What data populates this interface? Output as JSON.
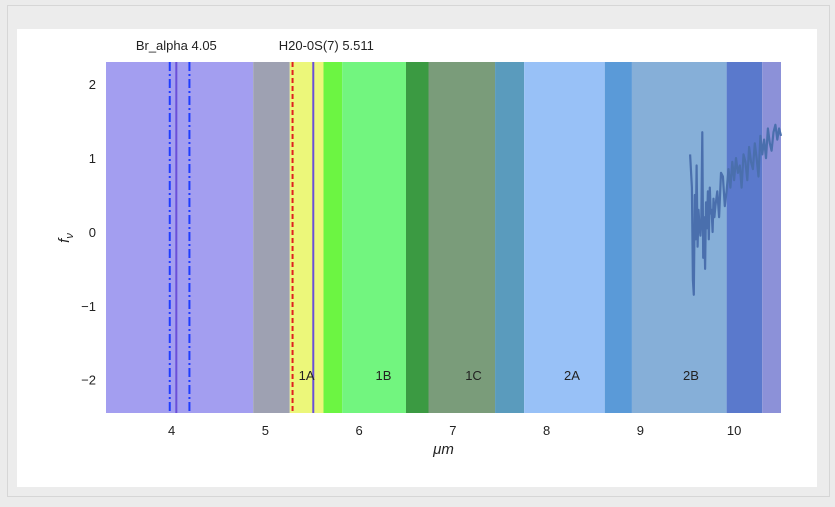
{
  "chart_data": {
    "type": "line",
    "xlabel": "μm",
    "ylabel": "f",
    "ylabel_subscript": "ν",
    "xlim": [
      3.3,
      10.5
    ],
    "ylim": [
      -2.45,
      2.3
    ],
    "xticks": [
      4,
      5,
      6,
      7,
      8,
      9,
      10
    ],
    "yticks": [
      2,
      1,
      0,
      -1,
      -2
    ],
    "ytick_labels": [
      "2",
      "1",
      "0",
      "−1",
      "−2"
    ],
    "grid": false,
    "bands": [
      {
        "x0": 3.3,
        "x1": 4.87,
        "color": "#a39ef0"
      },
      {
        "x0": 4.87,
        "x1": 5.26,
        "color": "#9ea1b2"
      },
      {
        "x0": 5.26,
        "x1": 5.62,
        "color": "#ecf77a"
      },
      {
        "x0": 5.62,
        "x1": 5.82,
        "color": "#6cf542"
      },
      {
        "x0": 5.82,
        "x1": 6.5,
        "color": "#72f57f"
      },
      {
        "x0": 6.5,
        "x1": 6.74,
        "color": "#3b9a42"
      },
      {
        "x0": 6.74,
        "x1": 7.45,
        "color": "#7a9c7a"
      },
      {
        "x0": 7.45,
        "x1": 7.76,
        "color": "#5a9bbd"
      },
      {
        "x0": 7.76,
        "x1": 8.62,
        "color": "#98c1f7"
      },
      {
        "x0": 8.62,
        "x1": 8.91,
        "color": "#5a9ad8"
      },
      {
        "x0": 8.91,
        "x1": 9.92,
        "color": "#86afd8"
      },
      {
        "x0": 9.92,
        "x1": 10.3,
        "color": "#5a79cc"
      },
      {
        "x0": 10.3,
        "x1": 10.5,
        "color": "#8c91d8"
      }
    ],
    "region_labels": [
      {
        "text": "1A",
        "x": 5.44,
        "y": -1.95
      },
      {
        "text": "1B",
        "x": 6.26,
        "y": -1.95
      },
      {
        "text": "1C",
        "x": 7.22,
        "y": -1.95
      },
      {
        "text": "2A",
        "x": 8.27,
        "y": -1.95
      },
      {
        "text": "2B",
        "x": 9.54,
        "y": -1.95
      }
    ],
    "vertical_lines": [
      {
        "x": 3.98,
        "color": "#1f3dff",
        "style": "dashdot"
      },
      {
        "x": 4.05,
        "color": "#6a4fd8",
        "style": "solid"
      },
      {
        "x": 4.19,
        "color": "#1f3dff",
        "style": "dashdot"
      },
      {
        "x": 5.29,
        "color": "#e02020",
        "style": "dashed"
      },
      {
        "x": 5.511,
        "color": "#6a4fd8",
        "style": "solid"
      }
    ],
    "line_labels": [
      {
        "text": "Br_alpha 4.05",
        "x": 4.05
      },
      {
        "text": "H20-0S(7) 5.511",
        "x": 5.65
      }
    ],
    "series": [
      {
        "color": "#4a6fad",
        "x": [
          9.53,
          9.55,
          9.56,
          9.57,
          9.58,
          9.59,
          9.6,
          9.61,
          9.62,
          9.63,
          9.64,
          9.65,
          9.66,
          9.67,
          9.68,
          9.69,
          9.7,
          9.71,
          9.72,
          9.73,
          9.74,
          9.75,
          9.76,
          9.77,
          9.78,
          9.79,
          9.8,
          9.82,
          9.84,
          9.86,
          9.88,
          9.9,
          9.92,
          9.94,
          9.96,
          9.98,
          10.0,
          10.02,
          10.04,
          10.06,
          10.08,
          10.1,
          10.12,
          10.14,
          10.16,
          10.18,
          10.2,
          10.22,
          10.24,
          10.26,
          10.28,
          10.3,
          10.32,
          10.34,
          10.36,
          10.38,
          10.4,
          10.42,
          10.44,
          10.46,
          10.48,
          10.5
        ],
        "y": [
          1.05,
          0.6,
          -0.65,
          -0.85,
          0.5,
          -0.1,
          0.9,
          -0.2,
          0.3,
          0.1,
          -0.05,
          0.15,
          1.35,
          -0.35,
          0.2,
          -0.5,
          0.4,
          0.05,
          0.55,
          -0.1,
          0.6,
          0.25,
          0.3,
          0.0,
          0.45,
          0.2,
          0.35,
          0.55,
          0.2,
          0.8,
          0.75,
          0.35,
          0.55,
          0.85,
          0.6,
          0.95,
          0.7,
          1.0,
          0.8,
          0.9,
          0.6,
          1.05,
          0.95,
          0.7,
          1.15,
          0.95,
          0.85,
          1.2,
          1.0,
          0.75,
          1.3,
          1.05,
          1.25,
          1.0,
          1.4,
          1.2,
          1.1,
          1.35,
          1.45,
          1.25,
          1.4,
          1.3
        ]
      }
    ]
  }
}
